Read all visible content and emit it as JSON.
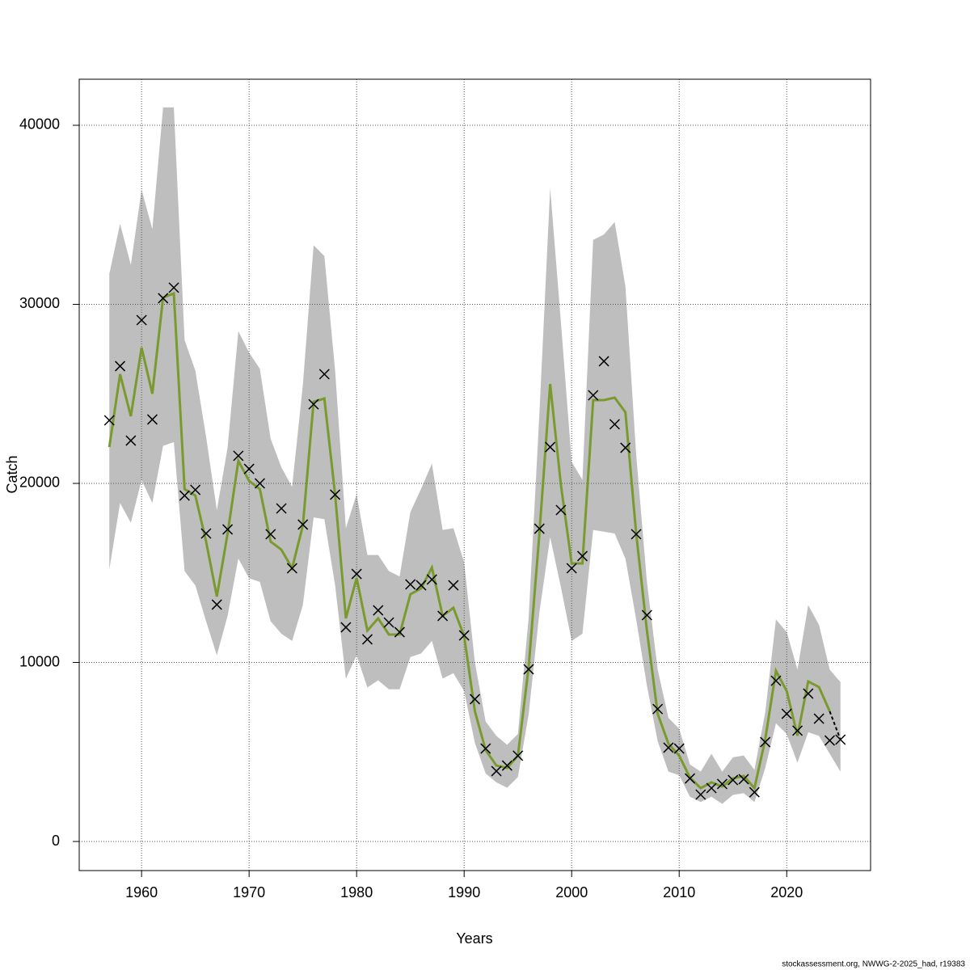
{
  "chart_data": {
    "type": "line",
    "x_label": "Years",
    "y_label": "Catch",
    "footer": "stockassessment.org, NWWG-2-2025_had, r19383",
    "grid": true,
    "xlim": [
      1954.2,
      2027.8
    ],
    "ylim": [
      -1625,
      42573
    ],
    "xticks": [
      1960,
      1970,
      1980,
      1990,
      2000,
      2010,
      2020
    ],
    "yticks": [
      0,
      10000,
      20000,
      30000,
      40000
    ],
    "x": [
      1957,
      1958,
      1959,
      1960,
      1961,
      1962,
      1963,
      1964,
      1965,
      1966,
      1967,
      1968,
      1969,
      1970,
      1971,
      1972,
      1973,
      1974,
      1975,
      1976,
      1977,
      1978,
      1979,
      1980,
      1981,
      1982,
      1983,
      1984,
      1985,
      1986,
      1987,
      1988,
      1989,
      1990,
      1991,
      1992,
      1993,
      1994,
      1995,
      1996,
      1997,
      1998,
      1999,
      2000,
      2001,
      2002,
      2003,
      2004,
      2005,
      2006,
      2007,
      2008,
      2009,
      2010,
      2011,
      2012,
      2013,
      2014,
      2015,
      2016,
      2017,
      2018,
      2019,
      2020,
      2021,
      2022,
      2023,
      2024,
      2025
    ],
    "band": {
      "color": "#bebebe",
      "upper": [
        31700,
        34500,
        32200,
        36400,
        34200,
        41000,
        41000,
        28000,
        26300,
        22600,
        18500,
        22000,
        28500,
        27300,
        26400,
        22500,
        20900,
        19800,
        25500,
        33300,
        32700,
        26300,
        17500,
        19400,
        16000,
        16000,
        15100,
        14800,
        18400,
        19700,
        21100,
        17400,
        17500,
        15600,
        10000,
        6700,
        5900,
        5400,
        6000,
        12500,
        23900,
        36500,
        29000,
        21200,
        20200,
        33600,
        33900,
        34600,
        31000,
        21600,
        14500,
        9600,
        6900,
        6300,
        4300,
        3900,
        4900,
        3900,
        4700,
        4800,
        4000,
        7200,
        12400,
        11700,
        9600,
        13200,
        12100,
        9600,
        8900
      ],
      "lower": [
        15200,
        18900,
        17800,
        20200,
        18900,
        22100,
        22300,
        15100,
        14300,
        12300,
        10400,
        12600,
        15800,
        14700,
        14500,
        12300,
        11600,
        11200,
        13200,
        18100,
        18000,
        14300,
        9100,
        10400,
        8600,
        9000,
        8500,
        8500,
        10300,
        10500,
        11200,
        9100,
        9400,
        8400,
        5500,
        3800,
        3300,
        3000,
        3600,
        7100,
        12800,
        17000,
        14200,
        11200,
        11600,
        17400,
        17300,
        17200,
        15800,
        12400,
        8700,
        5600,
        3900,
        3700,
        2500,
        2200,
        2500,
        2100,
        2600,
        2700,
        2200,
        4100,
        6600,
        6000,
        4400,
        6100,
        5900,
        4900,
        3900
      ]
    },
    "series": [
      {
        "color": "#7a9a2e",
        "values": [
          22030,
          26100,
          23750,
          27580,
          25010,
          30380,
          30610,
          19680,
          19320,
          16750,
          13680,
          17200,
          21260,
          20140,
          19680,
          16750,
          16300,
          15260,
          17650,
          24560,
          24740,
          19370,
          12460,
          14720,
          11780,
          12460,
          11560,
          11560,
          13810,
          14130,
          15300,
          12600,
          13050,
          11470,
          7270,
          5100,
          4240,
          4110,
          4790,
          9750,
          17200,
          25550,
          19910,
          15530,
          15530,
          24650,
          24650,
          24790,
          23970,
          17200,
          11780,
          7130,
          5460,
          4790,
          3570,
          2980,
          3300,
          3070,
          3520,
          3660,
          2980,
          5690,
          9530,
          8400,
          5910,
          8940,
          8620,
          7270,
          null
        ]
      }
    ],
    "forecast": {
      "color": "#000000",
      "x": [
        2024,
        2025
      ],
      "values": [
        7270,
        5690
      ]
    },
    "observations": {
      "color": "#000000",
      "values": [
        23520,
        26550,
        22390,
        29120,
        23570,
        30340,
        30930,
        19320,
        19640,
        17200,
        13230,
        17430,
        21540,
        20810,
        20000,
        17160,
        18600,
        15260,
        17700,
        24420,
        26100,
        19370,
        11960,
        14940,
        11290,
        12910,
        12230,
        11690,
        14360,
        14310,
        14630,
        12600,
        14310,
        11510,
        7950,
        5190,
        3930,
        4240,
        4790,
        9620,
        17470,
        22030,
        18510,
        15260,
        15940,
        24920,
        26820,
        23300,
        21990,
        17160,
        12640,
        7400,
        5240,
        5190,
        3520,
        2620,
        2980,
        3210,
        3430,
        3480,
        2750,
        5550,
        8980,
        7130,
        6190,
        8260,
        6860,
        5640,
        5690
      ]
    }
  }
}
